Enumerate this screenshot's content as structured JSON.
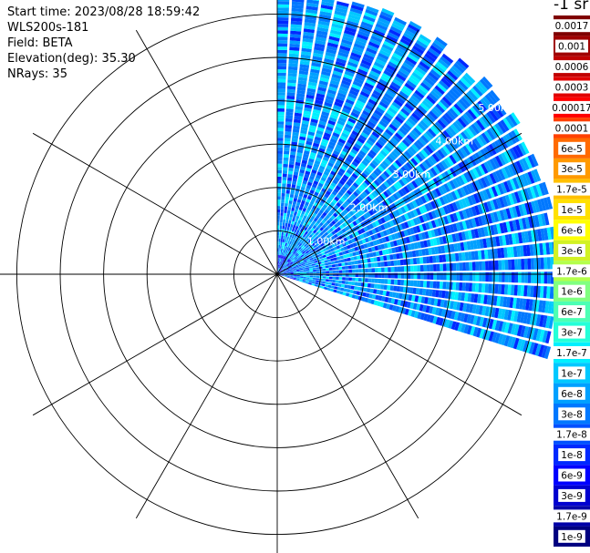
{
  "header": {
    "start_time": "Start time: 2023/08/28 18:59:42",
    "instrument": "WLS200s-181",
    "field": "Field: BETA",
    "elevation": "Elevation(deg): 35.30",
    "nrays": "NRays: 35"
  },
  "colorbar": {
    "unit": "-1 sr",
    "labels": [
      "0.0017",
      "0.001",
      "0.0006",
      "0.0003",
      "0.00017",
      "0.0001",
      "6e-5",
      "3e-5",
      "1.7e-5",
      "1e-5",
      "6e-6",
      "3e-6",
      "1.7e-6",
      "1e-6",
      "6e-7",
      "3e-7",
      "1.7e-7",
      "1e-7",
      "6e-8",
      "3e-8",
      "1.7e-8",
      "1e-8",
      "6e-9",
      "3e-9",
      "1.7e-9",
      "1e-9"
    ],
    "colors": [
      "#7f0000",
      "#a00000",
      "#c00000",
      "#e00000",
      "#ff0000",
      "#ff4000",
      "#ff6a00",
      "#ff9900",
      "#ffc000",
      "#ffe000",
      "#ffff00",
      "#d2f224",
      "#b4ff4c",
      "#80ff80",
      "#4cffb4",
      "#24ffd8",
      "#00f0ff",
      "#00c8ff",
      "#00a0ff",
      "#0078ff",
      "#0050ff",
      "#0028ff",
      "#0000ff",
      "#0000d0",
      "#0000a8",
      "#000080"
    ]
  },
  "chart_data": {
    "type": "heatmap",
    "projection": "polar PPI (azimuth clockwise from north)",
    "range_ring_labels": [
      "1.00km",
      "2.00km",
      "3.00km",
      "4.00km",
      "5.00km"
    ],
    "range_rings_km": [
      1,
      2,
      3,
      4,
      5
    ],
    "max_range_km": 5.2,
    "ring_outline_step_km": 0.8,
    "azimuth_spokes_deg": [
      0,
      30,
      60,
      90,
      120,
      150,
      180,
      210,
      240,
      270,
      300,
      330
    ],
    "scan_azimuth_start_deg": 0,
    "scan_azimuth_end_deg": 108,
    "nrays": 35,
    "elevation_deg": 35.3,
    "field": "BETA",
    "value_range": [
      "1e-9",
      "0.0017"
    ],
    "dominant_values": [
      "1e-8",
      "6e-8",
      "1.7e-7"
    ]
  }
}
